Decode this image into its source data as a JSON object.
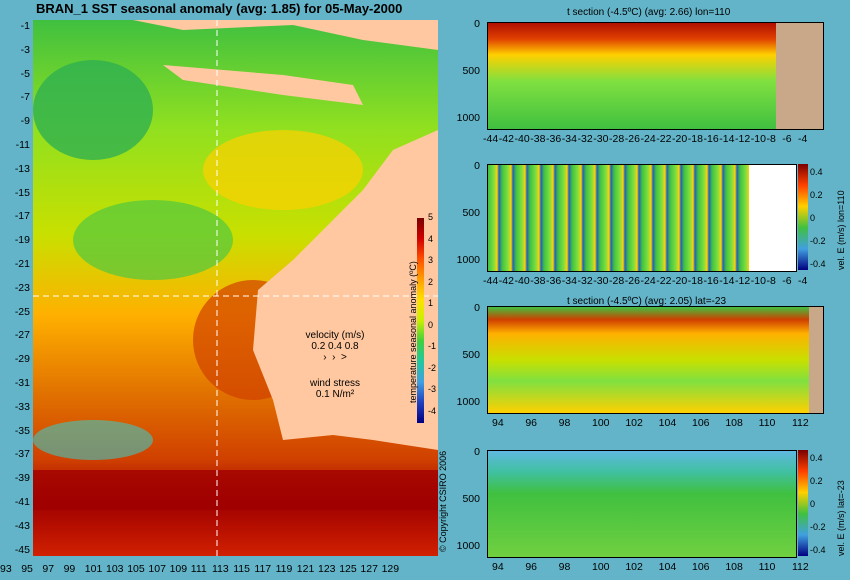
{
  "title": "BRAN_1  SST seasonal anomaly  (avg: 1.85) for 05-May-2000",
  "map": {
    "y_ticks": [
      "-1",
      "-3",
      "-5",
      "-7",
      "-9",
      "-11",
      "-13",
      "-15",
      "-17",
      "-19",
      "-21",
      "-23",
      "-25",
      "-27",
      "-29",
      "-31",
      "-33",
      "-35",
      "-37",
      "-39",
      "-41",
      "-43",
      "-45"
    ],
    "x_ticks": [
      "93",
      "95",
      "97",
      "99",
      "101",
      "103",
      "105",
      "107",
      "109",
      "111",
      "113",
      "115",
      "117",
      "119",
      "121",
      "123",
      "125",
      "127",
      "129"
    ],
    "legend": {
      "velocity_title": "velocity (m/s)",
      "velocity_values": "0.2 0.4 0.8",
      "wind_title": "wind stress",
      "wind_value": "0.1 N/m²"
    },
    "colorbar": {
      "ticks": [
        "5",
        "4",
        "3",
        "2",
        "1",
        "0",
        "-1",
        "-2",
        "-3",
        "-4"
      ],
      "label": "temperature seasonal anomaly (ºC)"
    }
  },
  "panels": [
    {
      "title": "t section (-4.5ºC) (avg: 2.66) lon=110",
      "y_ticks": [
        "0",
        "500",
        "1000"
      ],
      "x_ticks": [
        "-44",
        "-42",
        "-40",
        "-38",
        "-36",
        "-34",
        "-32",
        "-30",
        "-28",
        "-26",
        "-24",
        "-22",
        "-20",
        "-18",
        "-16",
        "-14",
        "-12",
        "-10",
        "-8",
        "-6",
        "-4"
      ],
      "cbar": null
    },
    {
      "title": "",
      "y_ticks": [
        "0",
        "500",
        "1000"
      ],
      "x_ticks": [
        "-44",
        "-42",
        "-40",
        "-38",
        "-36",
        "-34",
        "-32",
        "-30",
        "-28",
        "-26",
        "-24",
        "-22",
        "-20",
        "-18",
        "-16",
        "-14",
        "-12",
        "-10",
        "-8",
        "-6",
        "-4"
      ],
      "cbar": {
        "ticks": [
          "0.4",
          "0.2",
          "0",
          "-0.2",
          "-0.4"
        ],
        "label": "vel. E (m/s) lon=110"
      }
    },
    {
      "title": "t section (-4.5ºC) (avg: 2.05) lat=-23",
      "y_ticks": [
        "0",
        "500",
        "1000"
      ],
      "x_ticks": [
        "94",
        "96",
        "98",
        "100",
        "102",
        "104",
        "106",
        "108",
        "110",
        "112"
      ],
      "cbar": null
    },
    {
      "title": "",
      "y_ticks": [
        "0",
        "500",
        "1000"
      ],
      "x_ticks": [
        "94",
        "96",
        "98",
        "100",
        "102",
        "104",
        "106",
        "108",
        "110",
        "112"
      ],
      "cbar": {
        "ticks": [
          "0.4",
          "0.2",
          "0",
          "-0.2",
          "-0.4"
        ],
        "label": "vel. E (m/s) lat=-23"
      }
    }
  ],
  "copyright": "© Copyright CSIRO 2006"
}
